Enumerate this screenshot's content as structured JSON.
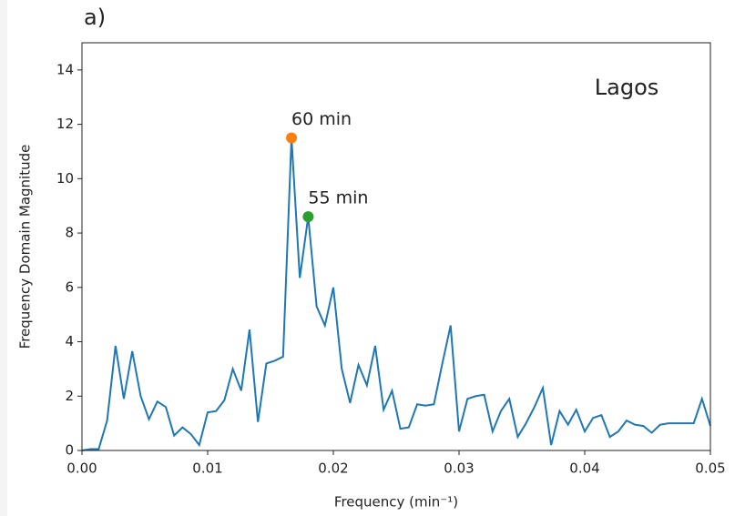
{
  "chart_data": {
    "type": "line",
    "panel_label": "a)",
    "label": "Lagos",
    "xlabel": "Frequency (min⁻¹)",
    "ylabel": "Frequency Domain Magnitude",
    "x": [
      0,
      0.00067,
      0.00133,
      0.002,
      0.00267,
      0.00333,
      0.004,
      0.00467,
      0.00533,
      0.006,
      0.00667,
      0.00733,
      0.008,
      0.00867,
      0.00933,
      0.01,
      0.01067,
      0.01133,
      0.012,
      0.01267,
      0.01333,
      0.014,
      0.01467,
      0.01533,
      0.016,
      0.01667,
      0.01733,
      0.018,
      0.01867,
      0.01933,
      0.02,
      0.02067,
      0.02133,
      0.022,
      0.02267,
      0.02333,
      0.024,
      0.02467,
      0.02533,
      0.026,
      0.02667,
      0.02733,
      0.028,
      0.02867,
      0.02933,
      0.03,
      0.03067,
      0.03133,
      0.032,
      0.03267,
      0.03333,
      0.034,
      0.03467,
      0.03533,
      0.036,
      0.03667,
      0.03733,
      0.038,
      0.03867,
      0.03933,
      0.04,
      0.04067,
      0.04133,
      0.042,
      0.04267,
      0.04333,
      0.044,
      0.04467,
      0.04533,
      0.046,
      0.04667,
      0.04733,
      0.048,
      0.04867,
      0.04933,
      0.05
    ],
    "series": [
      {
        "color": "#1f77b4",
        "values": [
          0,
          0.05,
          0.05,
          1.1,
          3.85,
          1.9,
          3.65,
          2.0,
          1.15,
          1.8,
          1.6,
          0.55,
          0.85,
          0.6,
          0.2,
          1.4,
          1.45,
          1.85,
          3.0,
          2.2,
          4.45,
          1.05,
          3.2,
          3.3,
          3.45,
          11.5,
          6.35,
          8.6,
          5.3,
          4.6,
          6.0,
          3.0,
          1.75,
          3.15,
          2.4,
          3.85,
          1.5,
          2.2,
          0.8,
          0.85,
          1.7,
          1.65,
          1.7,
          3.2,
          4.6,
          0.7,
          1.9,
          2.0,
          2.05,
          0.7,
          1.45,
          1.9,
          0.5,
          1.0,
          1.6,
          2.3,
          0.2,
          1.45,
          0.95,
          1.5,
          0.7,
          1.2,
          1.3,
          0.5,
          0.7,
          1.1,
          0.95,
          0.9,
          0.65,
          0.95,
          1.0,
          1.0,
          1.0,
          1.0,
          1.9,
          0.9
        ]
      }
    ],
    "annotations": [
      {
        "text": "60 min",
        "x": 0.01667,
        "y": 11.5,
        "color": "#ff7f0e"
      },
      {
        "text": "55 min",
        "x": 0.018,
        "y": 8.6,
        "color": "#2ca02c"
      }
    ],
    "xlim": [
      0,
      0.05
    ],
    "ylim": [
      0,
      15
    ],
    "xticks": [
      {
        "value": 0,
        "label": "0.00"
      },
      {
        "value": 0.01,
        "label": "0.01"
      },
      {
        "value": 0.02,
        "label": "0.02"
      },
      {
        "value": 0.03,
        "label": "0.03"
      },
      {
        "value": 0.04,
        "label": "0.04"
      },
      {
        "value": 0.05,
        "label": "0.05"
      }
    ],
    "yticks": [
      0,
      2,
      4,
      6,
      8,
      10,
      12,
      14
    ]
  }
}
